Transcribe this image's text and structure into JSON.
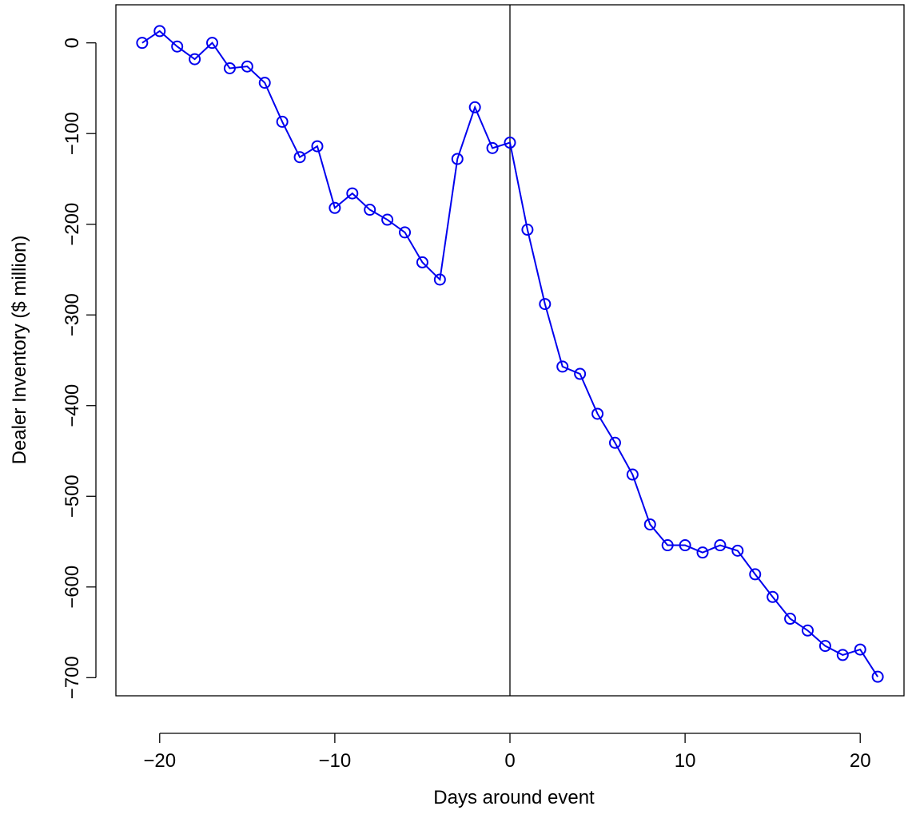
{
  "chart_data": {
    "type": "line",
    "xlabel": "Days around event",
    "ylabel": "Dealer Inventory ($ million)",
    "xlim": [
      -22.5,
      22.5
    ],
    "ylim": [
      -720,
      42
    ],
    "x_ticks": [
      -20,
      -10,
      0,
      10,
      20
    ],
    "y_ticks": [
      0,
      -100,
      -200,
      -300,
      -400,
      -500,
      -600,
      -700
    ],
    "x_tick_labels": [
      "−20",
      "−10",
      "0",
      "10",
      "20"
    ],
    "y_tick_labels": [
      "0",
      "−100",
      "−200",
      "−300",
      "−400",
      "−500",
      "−600",
      "−700"
    ],
    "vline_x": 0,
    "series_color": "#0000ee",
    "marker": "open-circle",
    "grid": false,
    "x": [
      -21,
      -20,
      -19,
      -18,
      -17,
      -16,
      -15,
      -14,
      -13,
      -12,
      -11,
      -10,
      -9,
      -8,
      -7,
      -6,
      -5,
      -4,
      -3,
      -2,
      -1,
      0,
      1,
      2,
      3,
      4,
      5,
      6,
      7,
      8,
      9,
      10,
      11,
      12,
      13,
      14,
      15,
      16,
      17,
      18,
      19,
      20,
      21
    ],
    "y": [
      0,
      13,
      -4,
      -18,
      0,
      -28,
      -26,
      -44,
      -87,
      -126,
      -114,
      -182,
      -166,
      -184,
      -195,
      -209,
      -242,
      -261,
      -128,
      -71,
      -116,
      -110,
      -206,
      -288,
      -357,
      -365,
      -409,
      -441,
      -476,
      -531,
      -554,
      -554,
      -562,
      -554,
      -560,
      -586,
      -611,
      -635,
      -648,
      -665,
      -675,
      -669,
      -699
    ]
  }
}
